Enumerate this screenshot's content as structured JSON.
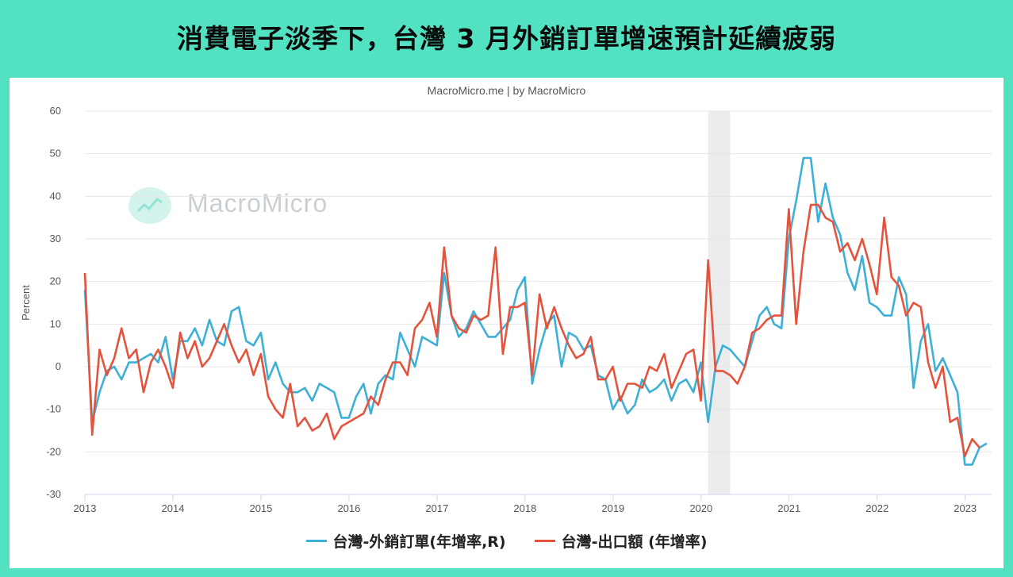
{
  "headline": "消費電子淡季下，台灣 3 月外銷訂單增速預計延續疲弱",
  "credit": "MacroMicro.me | by MacroMicro",
  "watermark": "MacroMicro",
  "colors": {
    "background": "#52e2c2",
    "orders": "#3cb0d6",
    "exports": "#e5533c",
    "recession": "#ececec"
  },
  "chart_data": {
    "type": "line",
    "ylabel": "Percent",
    "ylim": [
      -30,
      60
    ],
    "yticks": [
      -30,
      -20,
      -10,
      0,
      10,
      20,
      30,
      40,
      50,
      60
    ],
    "xlim": [
      2013.0,
      2023.3
    ],
    "xticks": [
      2013,
      2014,
      2015,
      2016,
      2017,
      2018,
      2019,
      2020,
      2021,
      2022,
      2023
    ],
    "grid": true,
    "legend_position": "bottom",
    "shaded_periods": [
      [
        2020.08,
        2020.33
      ]
    ],
    "series": [
      {
        "name": "台灣-外銷訂單(年增率,R)",
        "color": "#3cb0d6",
        "start": 2013.0,
        "step": 0.0833,
        "values": [
          18,
          -13,
          -6,
          -1,
          0,
          -3,
          1,
          1,
          2,
          3,
          1,
          7,
          -3,
          6,
          6,
          9,
          5,
          11,
          6,
          5,
          13,
          14,
          6,
          5,
          8,
          -3,
          1,
          -4,
          -6,
          -6,
          -5,
          -8,
          -4,
          -5,
          -6,
          -12,
          -12,
          -7,
          -4,
          -11,
          -4,
          -2,
          -3,
          8,
          4,
          0,
          7,
          6,
          5,
          22,
          12,
          7,
          9,
          13,
          10,
          7,
          7,
          9,
          11,
          18,
          21,
          -4,
          4,
          10,
          12,
          0,
          8,
          7,
          4,
          5,
          -2,
          -3,
          -10,
          -7,
          -11,
          -9,
          -3,
          -6,
          -5,
          -3,
          -8,
          -4,
          -3,
          -6,
          1,
          -13,
          0,
          5,
          4,
          2,
          0,
          6,
          12,
          14,
          10,
          9,
          30,
          39,
          49,
          49,
          34,
          43,
          35,
          31,
          22,
          18,
          26,
          15,
          14,
          12,
          12,
          21,
          17,
          -5,
          6,
          10,
          -1,
          2,
          -2,
          -6,
          -23,
          -23,
          -19,
          -18
        ]
      },
      {
        "name": "台灣-出口額 (年增率)",
        "color": "#e5533c",
        "start": 2013.0,
        "step": 0.0833,
        "values": [
          22,
          -16,
          4,
          -2,
          2,
          9,
          2,
          4,
          -6,
          1,
          4,
          0,
          -5,
          8,
          2,
          6,
          0,
          2,
          6,
          10,
          5,
          1,
          4,
          -2,
          3,
          -7,
          -10,
          -12,
          -4,
          -14,
          -12,
          -15,
          -14,
          -11,
          -17,
          -14,
          -13,
          -12,
          -11,
          -7,
          -9,
          -3,
          1,
          1,
          -2,
          9,
          11,
          15,
          7,
          28,
          12,
          9,
          8,
          12,
          11,
          12,
          28,
          3,
          14,
          14,
          15,
          -2,
          17,
          9,
          14,
          9,
          5,
          2,
          3,
          7,
          -3,
          -3,
          0,
          -8,
          -4,
          -4,
          -5,
          0,
          -1,
          3,
          -5,
          -1,
          3,
          4,
          -8,
          25,
          -1,
          -1,
          -2,
          -4,
          0,
          8,
          9,
          11,
          12,
          12,
          37,
          10,
          27,
          38,
          38,
          35,
          34,
          27,
          29,
          25,
          30,
          24,
          17,
          35,
          21,
          19,
          12,
          15,
          14,
          1,
          -5,
          0,
          -13,
          -12,
          -21,
          -17,
          -19
        ]
      }
    ]
  }
}
